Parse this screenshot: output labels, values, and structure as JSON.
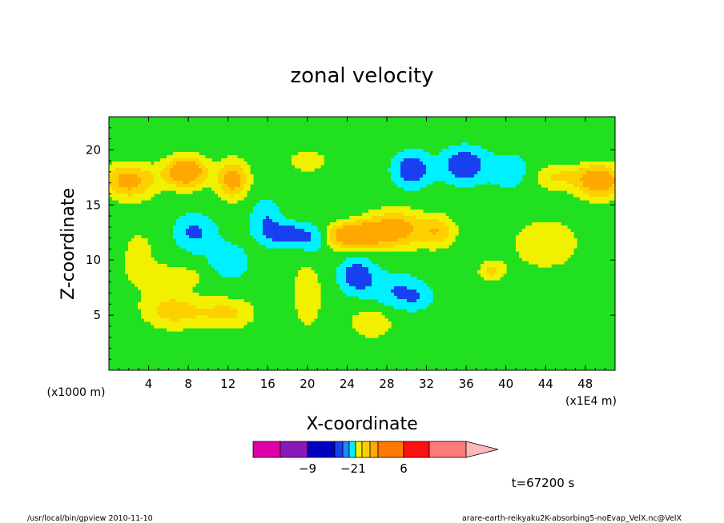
{
  "chart_data": {
    "type": "heatmap",
    "title": "zonal velocity",
    "xlabel": "X-coordinate",
    "ylabel": "Z-coordinate",
    "x_unit_left": "(x1000 m)",
    "x_unit_right": "(x1E4 m)",
    "xlim": [
      0,
      51
    ],
    "ylim": [
      0,
      23
    ],
    "xticks": [
      "4",
      "8",
      "12",
      "16",
      "20",
      "24",
      "28",
      "32",
      "36",
      "40",
      "44",
      "48"
    ],
    "yticks": [
      "5",
      "10",
      "15",
      "20"
    ],
    "xtick_values": [
      4,
      8,
      12,
      16,
      20,
      24,
      28,
      32,
      36,
      40,
      44,
      48
    ],
    "ytick_values": [
      5,
      10,
      15,
      20
    ],
    "background_value": 0,
    "features": [
      {
        "x": 2.0,
        "y": 17.2,
        "sx": 2.8,
        "sy": 1.6,
        "a": 3.6
      },
      {
        "x": 7.8,
        "y": 18.0,
        "sx": 2.2,
        "sy": 1.5,
        "a": 4.6
      },
      {
        "x": 12.5,
        "y": 17.3,
        "sx": 1.6,
        "sy": 1.8,
        "a": 3.8
      },
      {
        "x": 49.5,
        "y": 17.2,
        "sx": 2.2,
        "sy": 1.5,
        "a": 4.4
      },
      {
        "x": 45.0,
        "y": 17.6,
        "sx": 3.0,
        "sy": 1.2,
        "a": 2.0
      },
      {
        "x": 8.6,
        "y": 12.5,
        "sx": 2.0,
        "sy": 1.6,
        "a": -3.6
      },
      {
        "x": 15.8,
        "y": 13.6,
        "sx": 1.5,
        "sy": 1.8,
        "a": -3.0
      },
      {
        "x": 18.0,
        "y": 12.3,
        "sx": 1.9,
        "sy": 1.0,
        "a": -5.6
      },
      {
        "x": 20.5,
        "y": 11.8,
        "sx": 1.2,
        "sy": 1.4,
        "a": -3.0
      },
      {
        "x": 24.5,
        "y": 12.2,
        "sx": 2.6,
        "sy": 1.2,
        "a": 4.6
      },
      {
        "x": 28.8,
        "y": 12.8,
        "sx": 3.2,
        "sy": 1.8,
        "a": 3.8
      },
      {
        "x": 33.2,
        "y": 12.6,
        "sx": 1.8,
        "sy": 1.5,
        "a": 2.4
      },
      {
        "x": 30.5,
        "y": 18.2,
        "sx": 1.8,
        "sy": 1.5,
        "a": -5.0
      },
      {
        "x": 35.8,
        "y": 18.6,
        "sx": 2.2,
        "sy": 1.5,
        "a": -5.4
      },
      {
        "x": 40.5,
        "y": 18.0,
        "sx": 2.0,
        "sy": 1.6,
        "a": -2.6
      },
      {
        "x": 25.0,
        "y": 8.6,
        "sx": 1.7,
        "sy": 1.5,
        "a": -5.0
      },
      {
        "x": 28.8,
        "y": 7.2,
        "sx": 2.6,
        "sy": 1.6,
        "a": -3.0
      },
      {
        "x": 31.0,
        "y": 6.6,
        "sx": 1.6,
        "sy": 1.0,
        "a": -2.2
      },
      {
        "x": 6.5,
        "y": 5.4,
        "sx": 3.2,
        "sy": 1.8,
        "a": 2.4
      },
      {
        "x": 12.0,
        "y": 5.2,
        "sx": 3.0,
        "sy": 1.6,
        "a": 2.2
      },
      {
        "x": 26.5,
        "y": 4.4,
        "sx": 2.4,
        "sy": 1.6,
        "a": 2.0
      },
      {
        "x": 12.0,
        "y": 9.8,
        "sx": 2.0,
        "sy": 1.8,
        "a": -2.4
      },
      {
        "x": 7.0,
        "y": 8.5,
        "sx": 3.5,
        "sy": 1.0,
        "a": 1.6
      },
      {
        "x": 38.5,
        "y": 9.0,
        "sx": 1.2,
        "sy": 0.8,
        "a": 2.2
      },
      {
        "x": 20.0,
        "y": 7.0,
        "sx": 2.2,
        "sy": 5.0,
        "a": 1.4
      },
      {
        "x": 20.0,
        "y": 19.0,
        "sx": 4.0,
        "sy": 2.0,
        "a": 1.2
      },
      {
        "x": 44.0,
        "y": 11.5,
        "sx": 6.0,
        "sy": 4.0,
        "a": 1.3
      },
      {
        "x": 3.0,
        "y": 10.5,
        "sx": 3.0,
        "sy": 4.0,
        "a": 1.2
      }
    ],
    "legend": {
      "colors": [
        "#e000a8",
        "#8a18b8",
        "#0000c0",
        "#1840f0",
        "#2088ff",
        "#00f0ff",
        "#f0f000",
        "#ffd000",
        "#ffa800",
        "#ff7a00",
        "#ff1010",
        "#ff7a7a",
        "#ffb8b8"
      ],
      "thresholds": [
        -12,
        -9,
        -6,
        -3,
        -2,
        -1,
        1,
        2,
        3,
        6,
        9,
        12
      ],
      "bar_label_values": [
        -9,
        -2,
        1,
        6
      ],
      "bar_labels": [
        "−9",
        "−2",
        "1",
        "6"
      ]
    },
    "interior_fill_colors": {
      "below_-6": "#0000c0",
      "-6_to_-3": "#1840f0",
      "-3_to_-1": "#00f0ff",
      "-1_to_1": "#20e020",
      "1_to_2": "#f0f000",
      "2_to_3": "#ffd000",
      "3_to_6": "#ffa800",
      "6_and_above": "#ff7a00"
    }
  },
  "annotations": {
    "time": "t=67200 s",
    "footer_left": "/usr/local/bin/gpview  2010-11-10",
    "footer_right": "arare-earth-reikyaku2K-absorbing5-noEvap_VelX.nc@VelX"
  }
}
